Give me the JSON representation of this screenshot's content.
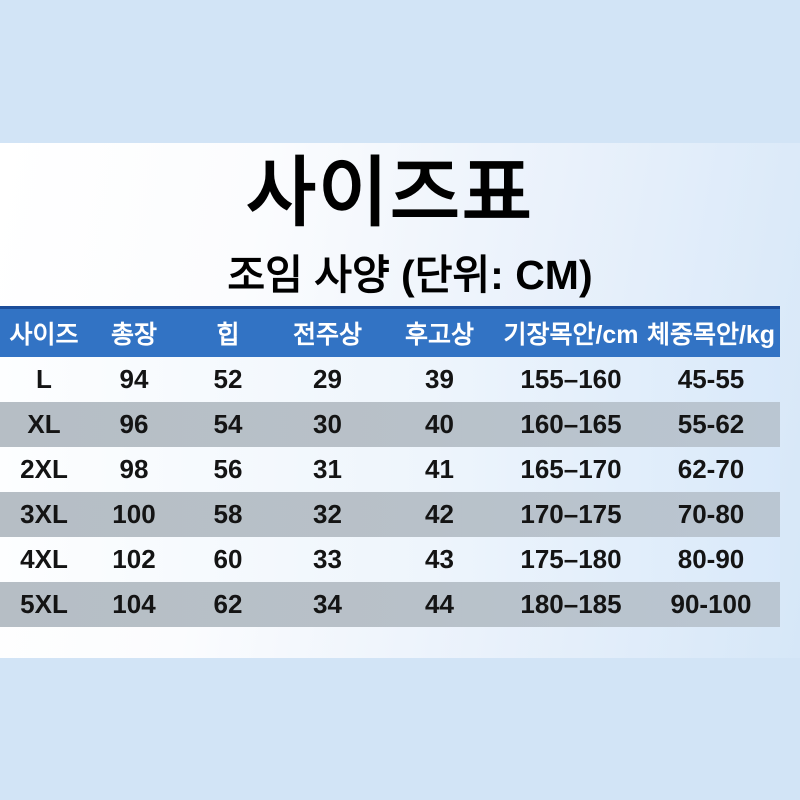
{
  "page": {
    "title": "사이즈표",
    "subtitle": "조임 사양 (단위: CM)"
  },
  "chart_data": {
    "type": "table",
    "title": "사이즈표",
    "subtitle": "조임 사양 (단위: CM)",
    "headers": [
      "사이즈",
      "총장",
      "힙",
      "전주상",
      "후고상",
      "기장목안/cm",
      "체중목안/kg"
    ],
    "rows": [
      [
        "L",
        "94",
        "52",
        "29",
        "39",
        "155–160",
        "45-55"
      ],
      [
        "XL",
        "96",
        "54",
        "30",
        "40",
        "160–165",
        "55-62"
      ],
      [
        "2XL",
        "98",
        "56",
        "31",
        "41",
        "165–170",
        "62-70"
      ],
      [
        "3XL",
        "100",
        "58",
        "32",
        "42",
        "170–175",
        "70-80"
      ],
      [
        "4XL",
        "102",
        "60",
        "33",
        "43",
        "175–180",
        "80-90"
      ],
      [
        "5XL",
        "104",
        "62",
        "34",
        "44",
        "180–185",
        "90-100"
      ]
    ]
  },
  "colors": {
    "page_bg": "#d2e4f6",
    "band_gradient_left": "#ffffff",
    "band_gradient_right": "#d6e7f8",
    "header_bg": "#3273c4",
    "header_top_border": "#1c4d9a",
    "header_text": "#ffffff",
    "row_light_left": "#fdfeff",
    "row_light_right": "#d9e9fa",
    "row_gray_left": "#b6bec5",
    "row_gray_right": "#bac6d2",
    "text": "#141414"
  }
}
